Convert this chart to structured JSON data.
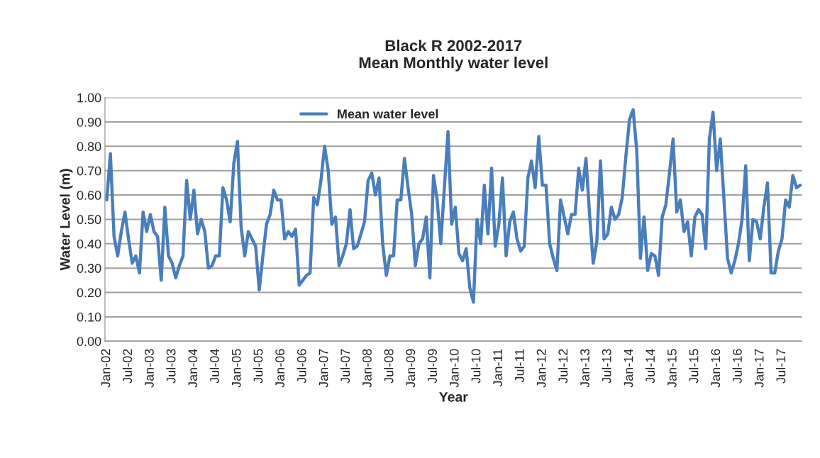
{
  "chart_data": {
    "type": "line",
    "title": "Black R 2002-2017\nMean Monthly water level",
    "xlabel": "Year",
    "ylabel": "Water Level (m)",
    "categories": [
      "Jan-02",
      null,
      null,
      null,
      null,
      null,
      "Jul-02",
      null,
      null,
      null,
      null,
      null,
      "Jan-03",
      null,
      null,
      null,
      null,
      null,
      "Jul-03",
      null,
      null,
      null,
      null,
      null,
      "Jan-04",
      null,
      null,
      null,
      null,
      null,
      "Jul-04",
      null,
      null,
      null,
      null,
      null,
      "Jan-05",
      null,
      null,
      null,
      null,
      null,
      "Jul-05",
      null,
      null,
      null,
      null,
      null,
      "Jan-06",
      null,
      null,
      null,
      null,
      null,
      "Jul-06",
      null,
      null,
      null,
      null,
      null,
      "Jan-07",
      null,
      null,
      null,
      null,
      null,
      "Jul-07",
      null,
      null,
      null,
      null,
      null,
      "Jan-08",
      null,
      null,
      null,
      null,
      null,
      "Jul-08",
      null,
      null,
      null,
      null,
      null,
      "Jan-09",
      null,
      null,
      null,
      null,
      null,
      "Jul-09",
      null,
      null,
      null,
      null,
      null,
      "Jan-10",
      null,
      null,
      null,
      null,
      null,
      "Jul-10",
      null,
      null,
      null,
      null,
      null,
      "Jan-11",
      null,
      null,
      null,
      null,
      null,
      "Jul-11",
      null,
      null,
      null,
      null,
      null,
      "Jan-12",
      null,
      null,
      null,
      null,
      null,
      "Jul-12",
      null,
      null,
      null,
      null,
      null,
      "Jan-13",
      null,
      null,
      null,
      null,
      null,
      "Jul-13",
      null,
      null,
      null,
      null,
      null,
      "Jan-14",
      null,
      null,
      null,
      null,
      null,
      "Jul-14",
      null,
      null,
      null,
      null,
      null,
      "Jan-15",
      null,
      null,
      null,
      null,
      null,
      "Jul-15",
      null,
      null,
      null,
      null,
      null,
      "Jan-16",
      null,
      null,
      null,
      null,
      null,
      "Jul-16",
      null,
      null,
      null,
      null,
      null,
      "Jan-17",
      null,
      null,
      null,
      null,
      null,
      "Jul-17",
      null,
      null,
      null,
      null,
      null
    ],
    "series": [
      {
        "name": "Mean water level",
        "color": "#4a7ebb",
        "values": [
          0.58,
          0.77,
          0.43,
          0.35,
          0.45,
          0.53,
          0.42,
          0.32,
          0.35,
          0.28,
          0.53,
          0.45,
          0.52,
          0.45,
          0.43,
          0.25,
          0.55,
          0.35,
          0.32,
          0.26,
          0.31,
          0.35,
          0.66,
          0.5,
          0.62,
          0.44,
          0.5,
          0.45,
          0.3,
          0.31,
          0.35,
          0.35,
          0.63,
          0.58,
          0.49,
          0.73,
          0.82,
          0.47,
          0.35,
          0.45,
          0.42,
          0.39,
          0.21,
          0.35,
          0.48,
          0.52,
          0.62,
          0.58,
          0.58,
          0.42,
          0.45,
          0.43,
          0.46,
          0.23,
          0.25,
          0.27,
          0.28,
          0.59,
          0.56,
          0.66,
          0.8,
          0.7,
          0.48,
          0.51,
          0.31,
          0.35,
          0.4,
          0.54,
          0.38,
          0.39,
          0.44,
          0.49,
          0.66,
          0.69,
          0.6,
          0.67,
          0.4,
          0.27,
          0.35,
          0.35,
          0.58,
          0.58,
          0.75,
          0.63,
          0.52,
          0.31,
          0.4,
          0.42,
          0.51,
          0.26,
          0.68,
          0.58,
          0.4,
          null,
          0.86,
          0.48,
          0.55,
          0.36,
          0.33,
          0.38,
          0.22,
          0.16,
          0.5,
          0.4,
          0.64,
          0.44,
          0.71,
          0.39,
          0.48,
          0.67,
          0.35,
          0.49,
          0.53,
          0.42,
          0.37,
          0.39,
          0.67,
          0.74,
          0.63,
          0.84,
          0.64,
          0.64,
          0.4,
          0.34,
          0.29,
          0.58,
          0.51,
          0.44,
          0.52,
          0.52,
          0.71,
          0.62,
          0.75,
          0.52,
          0.32,
          0.41,
          0.74,
          0.42,
          0.44,
          0.55,
          0.5,
          0.52,
          0.59,
          0.76,
          0.91,
          0.95,
          0.78,
          0.34,
          0.51,
          0.29,
          0.36,
          0.35,
          0.27,
          0.51,
          0.56,
          0.69,
          0.83,
          0.53,
          0.58,
          0.45,
          0.49,
          0.35,
          0.51,
          0.54,
          0.52,
          0.38,
          0.83,
          0.94,
          0.7,
          0.83,
          null,
          0.34,
          0.28,
          0.33,
          0.4,
          0.5,
          0.72,
          0.33,
          0.5,
          0.49,
          0.42,
          0.55,
          0.65,
          0.28,
          0.28,
          0.37,
          0.42,
          0.58,
          0.55,
          0.68,
          0.63,
          0.64
        ]
      }
    ],
    "ylim": [
      0,
      1
    ],
    "yticks": [
      {
        "value": 0,
        "label": "0.00"
      },
      {
        "value": 0.1,
        "label": "0.10"
      },
      {
        "value": 0.2,
        "label": "0.20"
      },
      {
        "value": 0.3,
        "label": "0.30"
      },
      {
        "value": 0.4,
        "label": "0.40"
      },
      {
        "value": 0.5,
        "label": "0.50"
      },
      {
        "value": 0.6,
        "label": "0.60"
      },
      {
        "value": 0.7,
        "label": "0.70"
      },
      {
        "value": 0.8,
        "label": "0.80"
      },
      {
        "value": 0.9,
        "label": "0.90"
      },
      {
        "value": 1,
        "label": "1.00"
      }
    ],
    "grid": "y",
    "legend": "top",
    "marker": "none",
    "line_style": "solid"
  }
}
